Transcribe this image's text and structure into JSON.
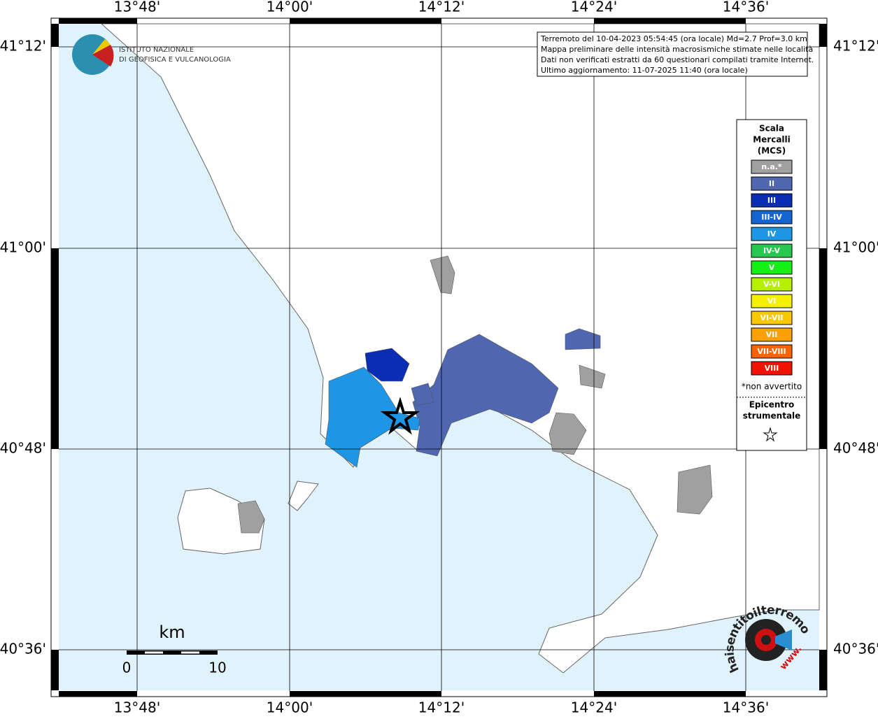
{
  "map": {
    "lon_labels": [
      "13°48'",
      "14°00'",
      "14°12'",
      "14°24'",
      "14°36'"
    ],
    "lat_labels": [
      "41°12'",
      "41°00'",
      "40°48'",
      "40°36'"
    ],
    "info": [
      "Terremoto del 10-04-2023 05:54:45 (ora locale) Md=2.7 Prof=3.0 km",
      "Mappa preliminare delle intensità macrosismiche stimate nelle località",
      "Dati non verificati estratti da 60 questionari compilati tramite Internet.",
      "Ultimo aggiornamento: 11-07-2025 11:40 (ora locale)"
    ],
    "logo": {
      "line1": "ISTITUTO NAZIONALE",
      "line2": "DI GEOFISICA E VULCANOLOGIA"
    },
    "legend": {
      "title": [
        "Scala",
        "Mercalli",
        "(MCS)"
      ],
      "items": [
        {
          "label": "n.a.*",
          "color": "#a0a0a0"
        },
        {
          "label": "II",
          "color": "#4f66b0"
        },
        {
          "label": "III",
          "color": "#0a2db4"
        },
        {
          "label": "III-IV",
          "color": "#1464d2"
        },
        {
          "label": "IV",
          "color": "#1e96e6"
        },
        {
          "label": "IV-V",
          "color": "#28c850"
        },
        {
          "label": "V",
          "color": "#14f014"
        },
        {
          "label": "V-VI",
          "color": "#b4f000"
        },
        {
          "label": "VI",
          "color": "#f5f000"
        },
        {
          "label": "VI-VII",
          "color": "#fac800"
        },
        {
          "label": "VII",
          "color": "#faa000"
        },
        {
          "label": "VII-VIII",
          "color": "#fa6400"
        },
        {
          "label": "VIII",
          "color": "#f01400"
        }
      ],
      "note": "*non avvertito",
      "epicenter": [
        "Epicentro",
        "strumentale"
      ]
    },
    "scale": {
      "unit": "km",
      "start": "0",
      "end": "10"
    },
    "badge": {
      "text": "haisentitoilterremoto.it",
      "www": "www."
    }
  }
}
